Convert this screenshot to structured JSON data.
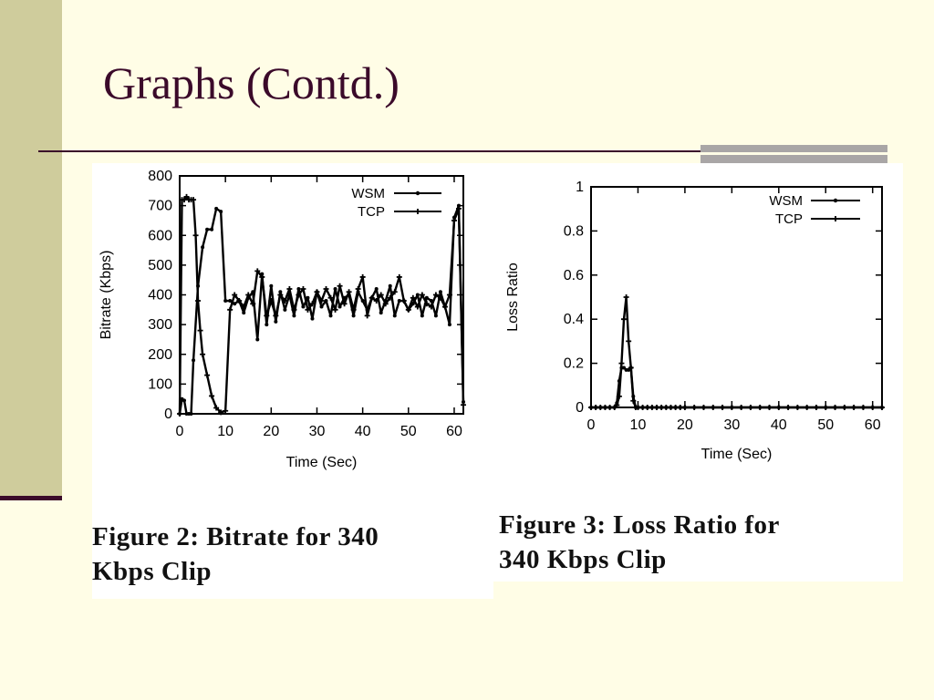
{
  "slide": {
    "title": "Graphs (Contd.)",
    "colors": {
      "background": "#fffde6",
      "sidebar": "#cfcc9c",
      "accent": "#3b0a2a",
      "rule_accent": "#a9a6a6"
    }
  },
  "figures": [
    {
      "caption_line1": "Figure 2:  Bitrate for 340",
      "caption_line2": "Kbps Clip"
    },
    {
      "caption_line1": "Figure 3:  Loss Ratio for",
      "caption_line2": "340 Kbps Clip"
    }
  ],
  "chart_data": [
    {
      "type": "line",
      "xlabel": "Time (Sec)",
      "ylabel": "Bitrate (Kbps)",
      "xlim": [
        0,
        62
      ],
      "ylim": [
        0,
        800
      ],
      "xticks": [
        0,
        10,
        20,
        30,
        40,
        50,
        60
      ],
      "yticks": [
        0,
        100,
        200,
        300,
        400,
        500,
        600,
        700,
        800
      ],
      "grid": false,
      "legend": "top-right",
      "series": [
        {
          "name": "WSM",
          "marker": "dot",
          "x": [
            0,
            0.5,
            1,
            1.5,
            2,
            2.5,
            3,
            4,
            5,
            6,
            7,
            8,
            9,
            10,
            11,
            12,
            13,
            14,
            15,
            16,
            17,
            18,
            19,
            20,
            21,
            22,
            23,
            24,
            25,
            26,
            27,
            28,
            29,
            30,
            31,
            32,
            33,
            34,
            35,
            36,
            37,
            38,
            39,
            40,
            41,
            42,
            43,
            44,
            45,
            46,
            47,
            48,
            49,
            50,
            51,
            52,
            53,
            54,
            55,
            56,
            57,
            58,
            59,
            60,
            61,
            62
          ],
          "values": [
            0,
            50,
            45,
            0,
            0,
            0,
            180,
            430,
            560,
            620,
            620,
            690,
            680,
            380,
            380,
            370,
            380,
            340,
            390,
            410,
            250,
            470,
            300,
            430,
            310,
            410,
            350,
            400,
            330,
            420,
            360,
            390,
            320,
            410,
            360,
            380,
            330,
            420,
            360,
            390,
            400,
            330,
            410,
            380,
            350,
            390,
            420,
            340,
            380,
            430,
            330,
            380,
            380,
            350,
            370,
            400,
            330,
            390,
            380,
            330,
            410,
            360,
            300,
            660,
            700,
            40
          ]
        },
        {
          "name": "TCP",
          "marker": "plus",
          "x": [
            0,
            0.5,
            1,
            1.5,
            2,
            2.5,
            3,
            3.5,
            4,
            4.5,
            5,
            6,
            7,
            8,
            9,
            10,
            11,
            12,
            13,
            14,
            15,
            16,
            17,
            18,
            19,
            20,
            21,
            22,
            23,
            24,
            25,
            26,
            27,
            28,
            29,
            30,
            31,
            32,
            33,
            34,
            35,
            36,
            37,
            38,
            39,
            40,
            41,
            42,
            43,
            44,
            45,
            46,
            47,
            48,
            49,
            50,
            51,
            52,
            53,
            54,
            55,
            56,
            57,
            58,
            59,
            60,
            61,
            62
          ],
          "values": [
            0,
            720,
            720,
            730,
            720,
            720,
            720,
            600,
            380,
            280,
            200,
            130,
            60,
            20,
            5,
            10,
            350,
            400,
            380,
            360,
            400,
            370,
            480,
            460,
            330,
            380,
            330,
            400,
            380,
            420,
            350,
            400,
            420,
            350,
            370,
            410,
            380,
            420,
            390,
            350,
            430,
            370,
            410,
            350,
            420,
            460,
            330,
            390,
            380,
            400,
            370,
            390,
            410,
            460,
            380,
            350,
            390,
            360,
            400,
            370,
            360,
            400,
            390,
            360,
            400,
            650,
            690,
            30
          ]
        }
      ]
    },
    {
      "type": "line",
      "xlabel": "Time (Sec)",
      "ylabel": "Loss Ratio",
      "xlim": [
        0,
        62
      ],
      "ylim": [
        0,
        1
      ],
      "xticks": [
        0,
        10,
        20,
        30,
        40,
        50,
        60
      ],
      "yticks": [
        0,
        0.2,
        0.4,
        0.6,
        0.8,
        1
      ],
      "grid": false,
      "legend": "top-right",
      "series": [
        {
          "name": "WSM",
          "marker": "dot",
          "x": [
            0,
            1,
            2,
            3,
            4,
            5,
            5.5,
            6,
            6.5,
            7,
            7.5,
            8,
            8.5,
            9,
            9.5,
            10,
            11,
            12,
            13,
            14,
            15,
            16,
            17,
            18,
            19,
            20,
            22,
            24,
            26,
            28,
            30,
            32,
            34,
            36,
            38,
            40,
            42,
            44,
            46,
            48,
            50,
            52,
            54,
            56,
            58,
            60,
            62
          ],
          "values": [
            0,
            0,
            0,
            0,
            0,
            0,
            0.02,
            0.12,
            0.18,
            0.18,
            0.17,
            0.17,
            0.18,
            0.05,
            0,
            0,
            0,
            0,
            0,
            0,
            0,
            0,
            0,
            0,
            0,
            0,
            0,
            0,
            0,
            0,
            0,
            0,
            0,
            0,
            0,
            0,
            0,
            0,
            0,
            0,
            0,
            0,
            0,
            0,
            0,
            0,
            0
          ]
        },
        {
          "name": "TCP",
          "marker": "plus",
          "x": [
            0,
            1,
            2,
            3,
            4,
            5,
            5.5,
            6,
            6.5,
            7,
            7.5,
            8,
            8.5,
            9,
            9.5,
            10,
            11,
            12,
            13,
            14,
            15,
            16,
            17,
            18,
            19,
            20,
            22,
            24,
            26,
            28,
            30,
            32,
            34,
            36,
            38,
            40,
            42,
            44,
            46,
            48,
            50,
            52,
            54,
            56,
            58,
            60,
            62
          ],
          "values": [
            0,
            0,
            0,
            0,
            0,
            0,
            0.01,
            0.05,
            0.2,
            0.4,
            0.5,
            0.3,
            0.18,
            0.03,
            0,
            0,
            0,
            0,
            0,
            0,
            0,
            0,
            0,
            0,
            0,
            0,
            0,
            0,
            0,
            0,
            0,
            0,
            0,
            0,
            0,
            0,
            0,
            0,
            0,
            0,
            0,
            0,
            0,
            0,
            0,
            0,
            0
          ]
        }
      ]
    }
  ]
}
